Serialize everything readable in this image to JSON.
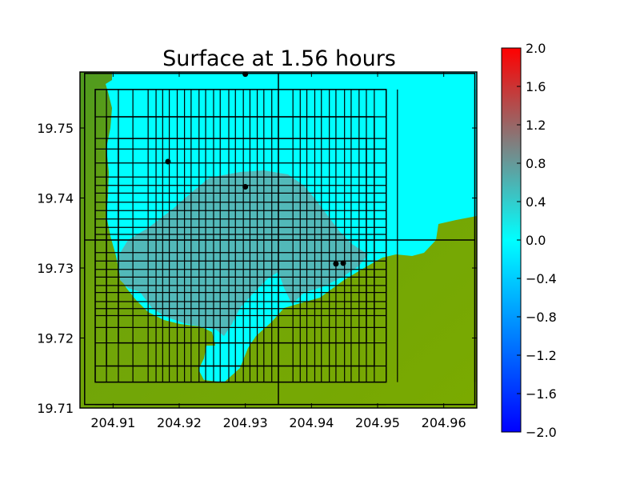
{
  "chart_data": {
    "type": "heatmap",
    "title": "Surface at 1.56 hours",
    "xlabel": "",
    "ylabel": "",
    "xlim": [
      204.905,
      204.965
    ],
    "ylim": [
      19.71,
      19.758
    ],
    "x_ticks": [
      204.91,
      204.92,
      204.93,
      204.94,
      204.95,
      204.96
    ],
    "x_tick_labels": [
      "204.91",
      "204.92",
      "204.93",
      "204.94",
      "204.95",
      "204.96"
    ],
    "y_ticks": [
      19.71,
      19.72,
      19.73,
      19.74,
      19.75
    ],
    "y_tick_labels": [
      "19.71",
      "19.72",
      "19.73",
      "19.74",
      "19.75"
    ],
    "colorbar": {
      "range": [
        -2.0,
        2.0
      ],
      "ticks": [
        2.0,
        1.6,
        1.2,
        0.8,
        0.4,
        0.0,
        -0.4,
        -0.8,
        -1.2,
        -1.6,
        -2.0
      ],
      "tick_labels": [
        "2.0",
        "1.6",
        "1.2",
        "0.8",
        "0.4",
        "0.0",
        "−0.4",
        "−0.8",
        "−1.2",
        "−1.6",
        "−2.0"
      ],
      "colors": [
        "#0000ff",
        "#00ffff",
        "#ff0000"
      ]
    },
    "colors": {
      "ocean": "#00ffff",
      "land": "#7aaa00",
      "land_dark": "#4f9a1f",
      "inundation": "#52b9b9",
      "grid": "#000000"
    },
    "gauges": [
      {
        "x": 204.93,
        "y": 19.7577
      },
      {
        "x": 204.9183,
        "y": 19.7452
      },
      {
        "x": 204.93,
        "y": 19.7416
      },
      {
        "x": 204.9437,
        "y": 19.7306
      },
      {
        "x": 204.9448,
        "y": 19.7307
      }
    ],
    "grid_lines_x": [
      204.9057,
      204.9073,
      204.909,
      204.9108,
      204.913,
      204.9153,
      204.9165,
      204.9175,
      204.9185,
      204.9197,
      204.9208,
      204.9218,
      204.923,
      204.924,
      204.9252,
      204.9262,
      204.9275,
      204.9285,
      204.9297,
      204.9307,
      204.9318,
      204.9328,
      204.934,
      204.935,
      204.9372,
      204.9383,
      204.9393,
      204.9405,
      204.9415,
      204.9427,
      204.9437,
      204.945,
      204.946,
      204.9472,
      204.9483,
      204.9495,
      204.9513,
      204.953,
      204.9647
    ],
    "grid_lines_y": [
      19.7105,
      19.7137,
      19.716,
      19.7193,
      19.7215,
      19.7232,
      19.7242,
      19.7252,
      19.7265,
      19.7275,
      19.7287,
      19.7298,
      19.731,
      19.7322,
      19.734,
      19.7348,
      19.7358,
      19.737,
      19.7382,
      19.7394,
      19.7407,
      19.7418,
      19.743,
      19.745,
      19.747,
      19.7485,
      19.7516,
      19.7555,
      19.7578
    ],
    "boxes": [
      {
        "x": [
          204.9057,
          204.9647
        ],
        "y": [
          19.7105,
          19.7578
        ]
      },
      {
        "x": [
          204.9073,
          204.9513
        ],
        "y": [
          19.7137,
          19.7555
        ]
      },
      {
        "x": [
          204.909,
          204.9495
        ],
        "y": [
          19.716,
          19.7516
        ]
      },
      {
        "x": [
          204.9108,
          204.9483
        ],
        "y": [
          19.7193,
          19.7485
        ]
      },
      {
        "x": [
          204.9057,
          204.9647
        ],
        "y": [
          19.734,
          19.734
        ]
      },
      {
        "x": [
          204.935,
          204.935
        ],
        "y": [
          19.7105,
          19.7578
        ]
      }
    ]
  }
}
